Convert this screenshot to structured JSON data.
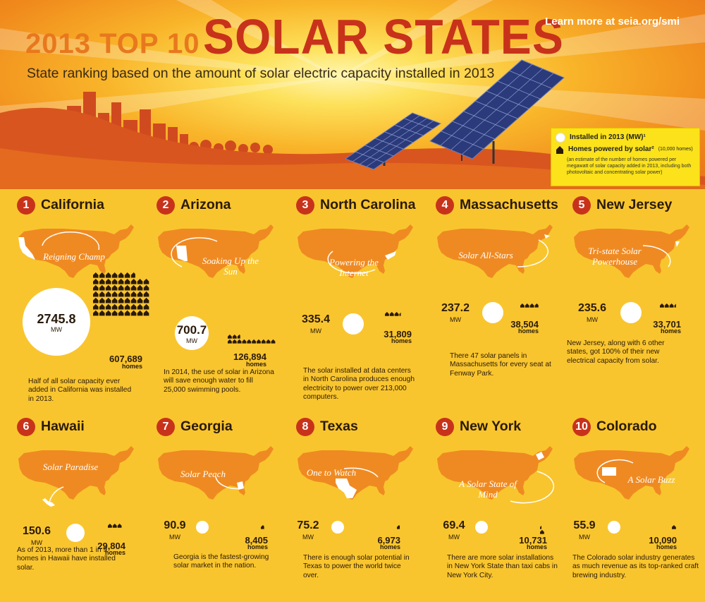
{
  "header": {
    "title_small": "2013 TOP 10",
    "title_big": "SOLAR STATES",
    "subtitle": "State ranking based on the amount of solar electric capacity installed in 2013",
    "learn_more": "Learn more at seia.org/smi"
  },
  "legend": {
    "installed_label": "Installed in 2013 (MW)¹",
    "homes_label": "Homes powered by solar²",
    "homes_label_unit": "(10,000 homes)",
    "note": "(an estimate of the number of homes powered per megawatt of solar capacity added in 2013, including both photovoltaic and concentrating solar power)"
  },
  "states": [
    {
      "rank": "1",
      "name": "California",
      "tagline": "Reigning Champ",
      "mw": "2745.8",
      "mw_unit": "MW",
      "homes": "607,689",
      "homes_unit": "homes",
      "house_icons": 60.8,
      "fact": "Half of all solar capacity ever added in California was installed in 2013."
    },
    {
      "rank": "2",
      "name": "Arizona",
      "tagline": "Soaking Up the Sun",
      "mw": "700.7",
      "mw_unit": "MW",
      "homes": "126,894",
      "homes_unit": "homes",
      "house_icons": 12.7,
      "fact": "In 2014, the use of solar in Arizona will save enough water to fill 25,000 swimming pools."
    },
    {
      "rank": "3",
      "name": "North Carolina",
      "tagline": "Powering the Internet",
      "mw": "335.4",
      "mw_unit": "MW",
      "homes": "31,809",
      "homes_unit": "homes",
      "house_icons": 3.2,
      "fact": "The solar installed at data centers in North Carolina produces enough electricity to power over 213,000 computers."
    },
    {
      "rank": "4",
      "name": "Massachusetts",
      "tagline": "Solar All-Stars",
      "mw": "237.2",
      "mw_unit": "MW",
      "homes": "38,504",
      "homes_unit": "homes",
      "house_icons": 3.9,
      "fact": "There 47 solar panels in Massachusetts for every seat at Fenway Park."
    },
    {
      "rank": "5",
      "name": "New Jersey",
      "tagline": "Tri-state Solar Powerhouse",
      "mw": "235.6",
      "mw_unit": "MW",
      "homes": "33,701",
      "homes_unit": "homes",
      "house_icons": 3.4,
      "fact": "New Jersey, along with 6 other states, got 100% of their new electrical capacity from solar."
    },
    {
      "rank": "6",
      "name": "Hawaii",
      "tagline": "Solar Paradise",
      "mw": "150.6",
      "mw_unit": "MW",
      "homes": "29,804",
      "homes_unit": "homes",
      "house_icons": 3.0,
      "fact": "As of 2013, more than 1 in 9 homes in Hawaii have installed solar."
    },
    {
      "rank": "7",
      "name": "Georgia",
      "tagline": "Solar Peach",
      "mw": "90.9",
      "mw_unit": "MW",
      "homes": "8,405",
      "homes_unit": "homes",
      "house_icons": 0.8,
      "fact": "Georgia is the fastest-growing solar market in the nation."
    },
    {
      "rank": "8",
      "name": "Texas",
      "tagline": "One to Watch",
      "mw": "75.2",
      "mw_unit": "MW",
      "homes": "6,973",
      "homes_unit": "homes",
      "house_icons": 0.7,
      "fact": "There is enough solar potential in Texas to power the world twice over."
    },
    {
      "rank": "9",
      "name": "New York",
      "tagline": "A Solar State of Mind",
      "mw": "69.4",
      "mw_unit": "MW",
      "homes": "10,731",
      "homes_unit": "homes",
      "house_icons": 1.1,
      "fact": "There are more solar installations in New York State than taxi cabs in New York City."
    },
    {
      "rank": "10",
      "name": "Colorado",
      "tagline": "A Solar Buzz",
      "mw": "55.9",
      "mw_unit": "MW",
      "homes": "10,090",
      "homes_unit": "homes",
      "house_icons": 1.0,
      "fact": "The Colorado solar industry generates as much revenue as its top-ranked craft brewing industry."
    }
  ],
  "colors": {
    "map_orange": "#ef8a22",
    "rank_red": "#c8321b",
    "background_yellow": "#f9c52e",
    "title_red": "#c8321b",
    "title_orange": "#e8781d"
  }
}
